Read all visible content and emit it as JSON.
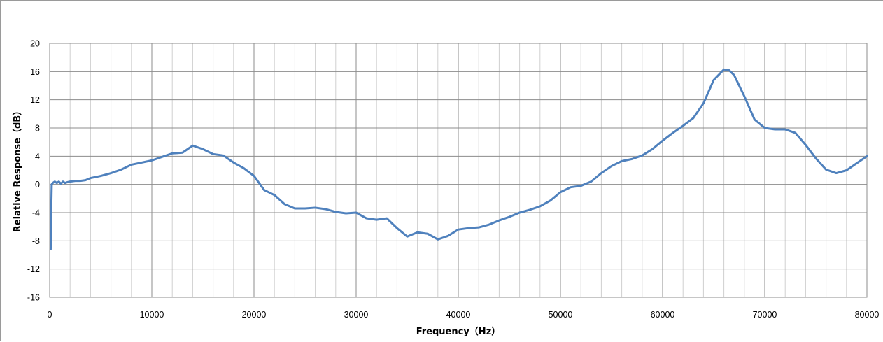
{
  "chart_data": {
    "type": "line",
    "title": "",
    "xlabel": "Frequency（Hz）",
    "ylabel": "Relative Response（dB）",
    "xlim": [
      0,
      80000
    ],
    "ylim": [
      -16,
      20
    ],
    "x_ticks": [
      0,
      10000,
      20000,
      30000,
      40000,
      50000,
      60000,
      70000,
      80000
    ],
    "x_tick_labels": [
      "0",
      "10000",
      "20000",
      "30000",
      "40000",
      "50000",
      "60000",
      "70000",
      "80000"
    ],
    "y_ticks": [
      -16,
      -12,
      -8,
      -4,
      0,
      4,
      8,
      12,
      16,
      20
    ],
    "y_tick_labels": [
      "-16",
      "-12",
      "-8",
      "-4",
      "0",
      "4",
      "8",
      "12",
      "16",
      "20"
    ],
    "minor_x_step": 2000,
    "grid": true,
    "legend": "none",
    "colors": {
      "line": "#4f81bd",
      "major_grid": "#8c8c8c",
      "minor_grid": "#d0d0d0",
      "frame": "#9a9a9a"
    },
    "series": [
      {
        "x": [
          100,
          150,
          200,
          300,
          500,
          700,
          900,
          1100,
          1300,
          1500,
          1700,
          2000,
          2500,
          3000,
          3500,
          4000,
          5000,
          6000,
          7000,
          8000,
          9000,
          10000,
          11000,
          12000,
          13000,
          14000,
          15000,
          16000,
          17000,
          18000,
          19000,
          20000,
          21000,
          22000,
          23000,
          24000,
          25000,
          26000,
          27000,
          28000,
          29000,
          30000,
          31000,
          32000,
          33000,
          34000,
          35000,
          36000,
          37000,
          38000,
          39000,
          40000,
          41000,
          42000,
          43000,
          44000,
          45000,
          46000,
          47000,
          48000,
          49000,
          50000,
          51000,
          52000,
          53000,
          54000,
          55000,
          56000,
          57000,
          58000,
          59000,
          60000,
          61000,
          62000,
          63000,
          64000,
          65000,
          66000,
          66500,
          67000,
          68000,
          69000,
          70000,
          71000,
          72000,
          73000,
          74000,
          75000,
          76000,
          77000,
          78000,
          79000,
          80000
        ],
        "values": [
          -9.2,
          -4.0,
          0.0,
          0.2,
          0.4,
          0.2,
          0.4,
          0.1,
          0.4,
          0.2,
          0.3,
          0.4,
          0.5,
          0.5,
          0.6,
          0.9,
          1.2,
          1.6,
          2.1,
          2.8,
          3.1,
          3.4,
          3.9,
          4.4,
          4.5,
          5.5,
          5.0,
          4.3,
          4.1,
          3.1,
          2.3,
          1.2,
          -0.8,
          -1.5,
          -2.8,
          -3.4,
          -3.4,
          -3.3,
          -3.5,
          -3.9,
          -4.1,
          -4.0,
          -4.8,
          -5.0,
          -4.8,
          -6.2,
          -7.4,
          -6.8,
          -7.0,
          -7.8,
          -7.3,
          -6.4,
          -6.2,
          -6.1,
          -5.7,
          -5.1,
          -4.6,
          -4.0,
          -3.6,
          -3.1,
          -2.3,
          -1.1,
          -0.4,
          -0.2,
          0.4,
          1.6,
          2.6,
          3.3,
          3.6,
          4.1,
          5.0,
          6.2,
          7.3,
          8.3,
          9.4,
          11.5,
          14.8,
          16.3,
          16.2,
          15.5,
          12.5,
          9.2,
          8.0,
          7.8,
          7.8,
          7.3,
          5.6,
          3.7,
          2.1,
          1.6,
          2.0,
          3.0,
          4.0
        ]
      }
    ]
  }
}
